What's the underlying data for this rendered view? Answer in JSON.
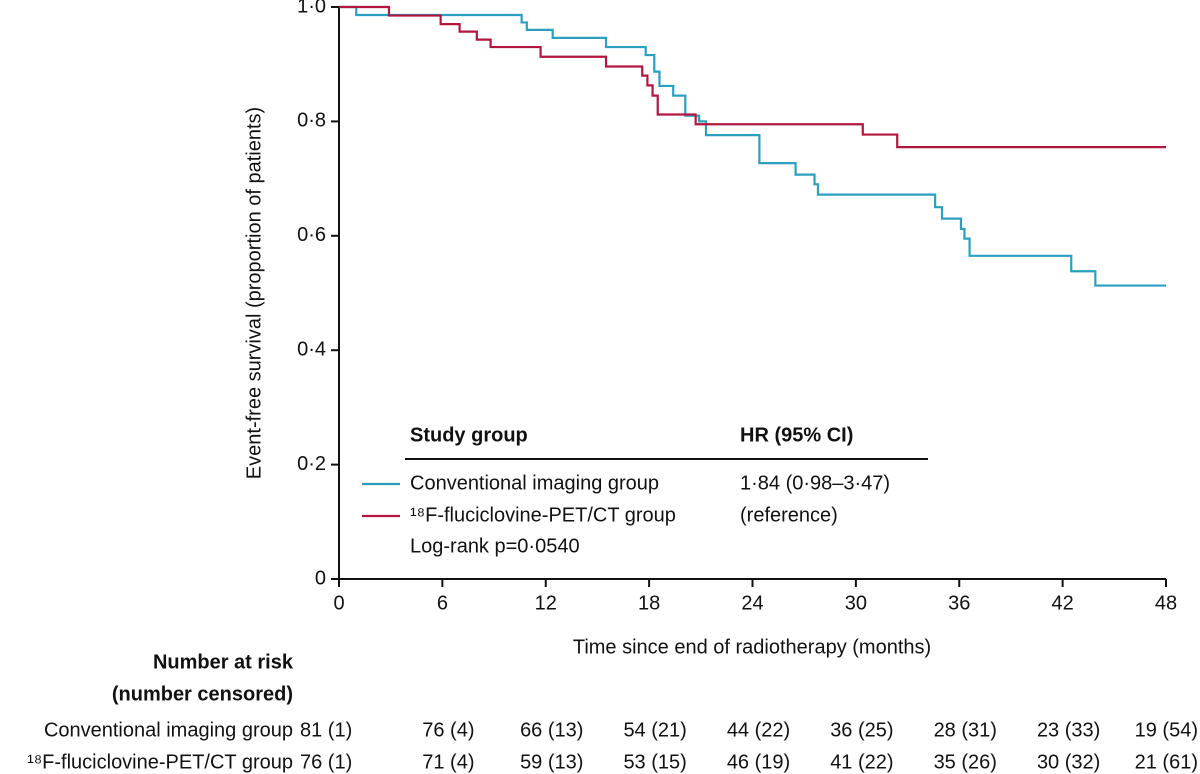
{
  "chart_data": {
    "type": "line",
    "step": "post",
    "xlabel": "Time since end of radiotherapy (months)",
    "ylabel": "Event-free survival (proportion of patients)",
    "xlim": [
      0,
      48
    ],
    "ylim": [
      0,
      1
    ],
    "xticks": [
      0,
      6,
      12,
      18,
      24,
      30,
      36,
      42,
      48
    ],
    "yticks": [
      0,
      {
        "value": 0.2,
        "label": "0·2"
      },
      {
        "value": 0.4,
        "label": "0·4"
      },
      {
        "value": 0.6,
        "label": "0·6"
      },
      {
        "value": 0.8,
        "label": "0·8"
      },
      {
        "value": 1,
        "label": "1·0"
      }
    ],
    "series": [
      {
        "name": "Conventional imaging group",
        "color": "#2a9fc0",
        "x": [
          0,
          1,
          10.6,
          10.9,
          12.4,
          15.5,
          17.8,
          18.3,
          18.6,
          19.4,
          20.1,
          20.9,
          21.3,
          24.4,
          26.5,
          27.6,
          27.8,
          34.6,
          35.0,
          36.1,
          36.3,
          36.6,
          42.5,
          43.9,
          48
        ],
        "values": [
          1,
          0.986,
          0.973,
          0.96,
          0.946,
          0.93,
          0.916,
          0.887,
          0.862,
          0.845,
          0.81,
          0.8,
          0.776,
          0.727,
          0.707,
          0.69,
          0.672,
          0.65,
          0.63,
          0.612,
          0.595,
          0.565,
          0.538,
          0.513,
          0.513
        ]
      },
      {
        "name": "¹⁸F-fluciclovine-PET/CT group",
        "color": "#b0163f",
        "x": [
          0,
          2.9,
          5.9,
          7.0,
          8.0,
          8.8,
          11.7,
          15.5,
          17.6,
          17.9,
          18.2,
          18.5,
          20.7,
          30.4,
          32.4,
          48
        ],
        "values": [
          1,
          0.985,
          0.97,
          0.957,
          0.943,
          0.93,
          0.913,
          0.896,
          0.88,
          0.863,
          0.845,
          0.812,
          0.795,
          0.777,
          0.755,
          0.755
        ]
      }
    ],
    "legend_table": {
      "headers": [
        "Study group",
        "HR (95% CI)"
      ],
      "hr": [
        "1·84 (0·98–3·47)",
        "(reference)"
      ],
      "note": "Log-rank p=0·0540"
    },
    "risk_table": {
      "title": [
        "Number at risk",
        "(number censored)"
      ],
      "rows": [
        [
          "81 (1)",
          "76 (4)",
          "66 (13)",
          "54 (21)",
          "44 (22)",
          "36 (25)",
          "28 (31)",
          "23 (33)",
          "19 (54)"
        ],
        [
          "76 (1)",
          "71 (4)",
          "59 (13)",
          "53 (15)",
          "46 (19)",
          "41 (22)",
          "35 (26)",
          "30 (32)",
          "21 (61)"
        ]
      ]
    }
  }
}
